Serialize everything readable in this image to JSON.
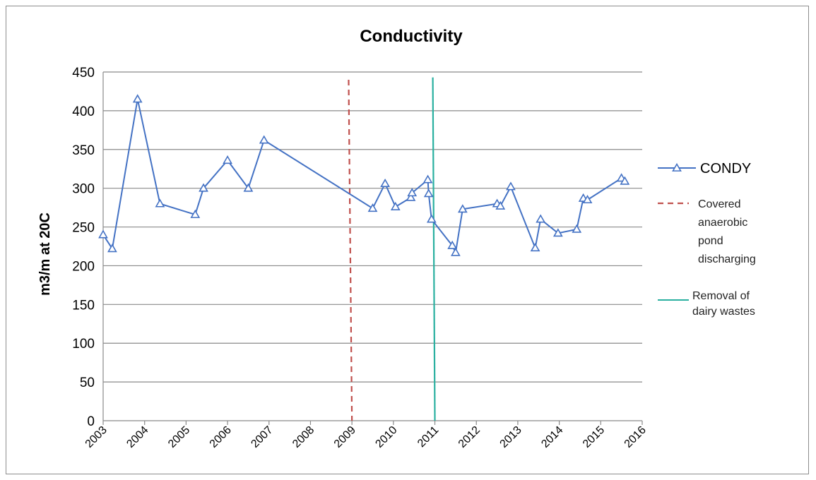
{
  "chart_data": {
    "type": "line",
    "title": "Conductivity",
    "xlabel": "",
    "ylabel": "m3/m at 20C",
    "xlim": [
      2003,
      2016
    ],
    "ylim": [
      0,
      450
    ],
    "x_ticks": [
      "2003",
      "2004",
      "2005",
      "2006",
      "2007",
      "2008",
      "2009",
      "2010",
      "2011",
      "2012",
      "2013",
      "2014",
      "2015",
      "2016"
    ],
    "y_ticks": [
      "0",
      "50",
      "100",
      "150",
      "200",
      "250",
      "300",
      "350",
      "400",
      "450"
    ],
    "grid": "horizontal",
    "legend_position": "right",
    "series": [
      {
        "name": "CONDY",
        "color": "#4472C4",
        "marker": "triangle",
        "x": [
          2003.0,
          2003.22,
          2003.83,
          2004.37,
          2005.22,
          2005.42,
          2006.0,
          2006.5,
          2006.88,
          2009.5,
          2009.8,
          2010.05,
          2010.42,
          2010.45,
          2010.83,
          2010.85,
          2010.92,
          2011.42,
          2011.5,
          2011.67,
          2012.5,
          2012.58,
          2012.83,
          2013.42,
          2013.55,
          2013.97,
          2014.42,
          2014.58,
          2014.68,
          2015.5,
          2015.58
        ],
        "y": [
          240,
          222,
          415,
          280,
          266,
          300,
          336,
          300,
          362,
          274,
          306,
          276,
          288,
          294,
          311,
          293,
          260,
          226,
          217,
          273,
          280,
          277,
          302,
          223,
          260,
          242,
          247,
          287,
          285,
          313,
          309
        ]
      },
      {
        "name": "Covered anaerobic pond discharging",
        "color": "#C0504D",
        "style": "dashed",
        "x": [
          2008.92,
          2009.0
        ],
        "y": [
          440,
          0
        ]
      },
      {
        "name": "Removal of dairy wastes",
        "color": "#2AB0A0",
        "style": "solid",
        "x": [
          2010.95,
          2011.0
        ],
        "y": [
          443,
          0
        ]
      }
    ],
    "legend": [
      {
        "key": "condy",
        "lines": [
          "CONDY"
        ]
      },
      {
        "key": "pond",
        "lines": [
          "Covered",
          "anaerobic",
          "pond",
          "discharging"
        ]
      },
      {
        "key": "dairy",
        "lines": [
          "Removal of",
          "dairy wastes"
        ]
      }
    ]
  }
}
